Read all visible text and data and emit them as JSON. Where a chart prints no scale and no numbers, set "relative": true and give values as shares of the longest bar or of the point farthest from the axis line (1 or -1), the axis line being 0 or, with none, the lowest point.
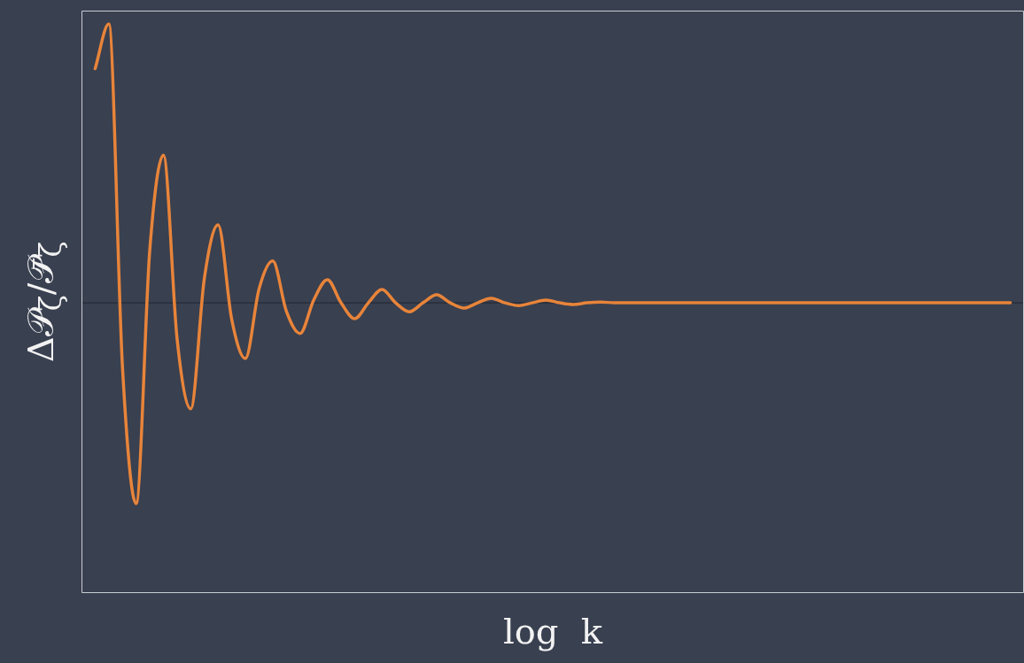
{
  "chart_data": {
    "type": "line",
    "relative": true,
    "xlabel": "log  k",
    "ylabel": "Δ𝒫$_{ζ}$/𝒫̄$_{ζ}$",
    "grid": false,
    "legend": false,
    "marker": "none",
    "line_style": "solid",
    "tick_labels": false,
    "categories": [
      null,
      null,
      null,
      null,
      null,
      null,
      null,
      null,
      null,
      null,
      null,
      null,
      null,
      null,
      null,
      null,
      null,
      null,
      null,
      null,
      null,
      null,
      null,
      null,
      null,
      null,
      null,
      null,
      null,
      null,
      null,
      null,
      null,
      null,
      null,
      null,
      null,
      null,
      null,
      null,
      null,
      null,
      null,
      null,
      null,
      null,
      null,
      null,
      null,
      null,
      null,
      null,
      null,
      null,
      null,
      null,
      null,
      null,
      null,
      null,
      null,
      null,
      null,
      null,
      null,
      null,
      null,
      null,
      null,
      null
    ],
    "series": [
      {
        "color": "#e8843a",
        "values": [
          null,
          0.84,
          1,
          -0.23,
          -0.72,
          0.19,
          0.53,
          -0.13,
          -0.38,
          0.09,
          0.28,
          -0.06,
          -0.2,
          0.05,
          0.15,
          -0.03,
          -0.11,
          0.01,
          0.083,
          0,
          -0.057,
          0,
          0.048,
          0,
          -0.032,
          0,
          0.029,
          0,
          -0.019,
          0,
          0.016,
          0,
          -0.01,
          0,
          0.01,
          0,
          -0.006,
          0,
          0.003,
          0,
          0,
          0,
          0,
          0,
          0,
          0,
          0,
          0,
          0,
          0,
          0,
          0,
          0,
          0,
          0,
          0,
          0,
          0,
          0,
          0,
          0,
          0,
          0,
          0,
          0,
          0,
          0,
          0,
          0,
          null
        ]
      }
    ]
  }
}
